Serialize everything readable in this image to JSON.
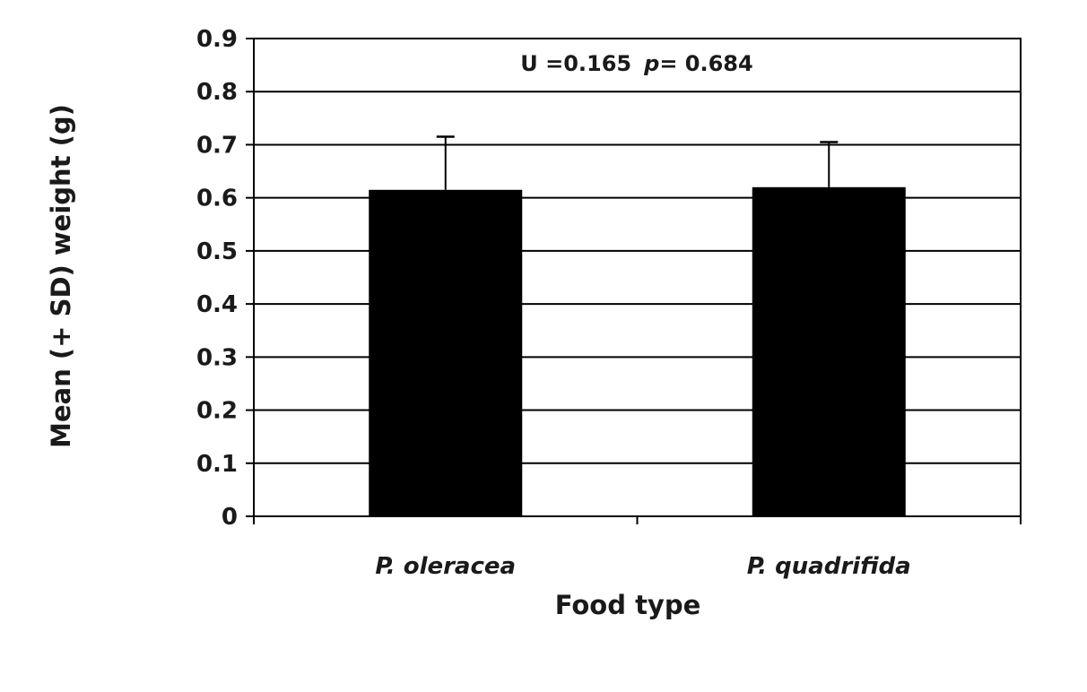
{
  "chart_data": {
    "type": "bar",
    "categories": [
      "P. oleracea",
      "P. quadrifida"
    ],
    "values": [
      0.615,
      0.62
    ],
    "error_plus": [
      0.1,
      0.085
    ],
    "xlabel": "Food type",
    "ylabel": "Mean (+ SD) weight (g)",
    "ylim": [
      0,
      0.9
    ],
    "yticks": [
      "0",
      "0.1",
      "0.2",
      "0.3",
      "0.4",
      "0.5",
      "0.6",
      "0.7",
      "0.8",
      "0.9"
    ],
    "grid": true,
    "bar_color": "#000000",
    "annotation": {
      "stat": "U =0.165",
      "p_label": "p",
      "p_value": "= 0.684"
    }
  }
}
